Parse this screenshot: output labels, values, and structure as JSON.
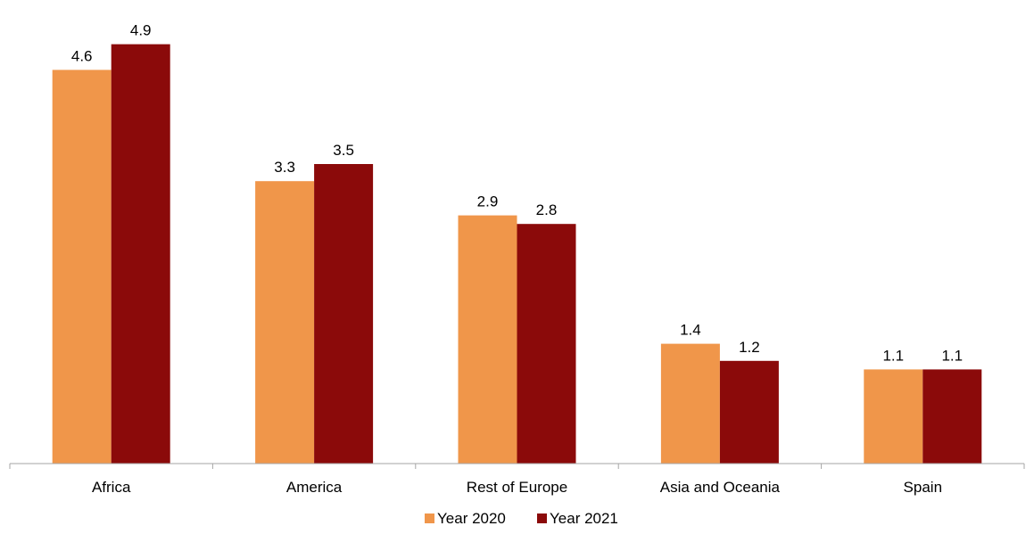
{
  "chart_data": {
    "type": "bar",
    "title": "",
    "xlabel": "",
    "ylabel": "",
    "categories": [
      "Africa",
      "America",
      "Rest of Europe",
      "Asia and Oceania",
      "Spain"
    ],
    "series": [
      {
        "name": "Year 2020",
        "color": "#F0964A",
        "values": [
          4.6,
          3.3,
          2.9,
          1.4,
          1.1
        ],
        "labels": [
          "4.6",
          "3.3",
          "2.9",
          "1.4",
          "1.1"
        ]
      },
      {
        "name": "Year 2021",
        "color": "#8B0A0A",
        "values": [
          4.9,
          3.5,
          2.8,
          1.2,
          1.1
        ],
        "labels": [
          "4.9",
          "3.5",
          "2.8",
          "1.2",
          "1.1"
        ]
      }
    ],
    "ylim": [
      0,
      5.0
    ],
    "grid": false,
    "legend_position": "bottom"
  }
}
